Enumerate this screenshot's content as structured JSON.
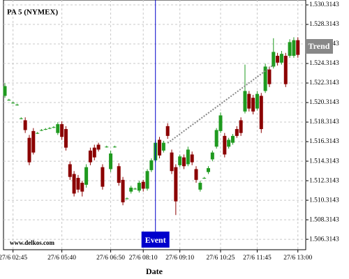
{
  "chart_data": {
    "type": "candlestick",
    "title": "PA 5 (NYMEX)",
    "watermark": "www.delkos.com",
    "x_label": "Date",
    "categories": [
      null,
      null,
      "27/6 02:45",
      null,
      null,
      null,
      null,
      null,
      null,
      null,
      null,
      null,
      null,
      null,
      "27/6 05:40",
      null,
      null,
      null,
      null,
      null,
      null,
      null,
      null,
      null,
      null,
      null,
      "27/6 06:50",
      null,
      null,
      null,
      null,
      null,
      null,
      null,
      "27/6 08:10",
      null,
      null,
      null,
      null,
      null,
      null,
      null,
      null,
      "27/6 09:10",
      null,
      null,
      null,
      null,
      null,
      null,
      null,
      null,
      null,
      "27/6 10:25",
      null,
      null,
      null,
      null,
      null,
      null,
      null,
      null,
      "27/6 11:45",
      null,
      null,
      null,
      null,
      null,
      null,
      null,
      null,
      null,
      "27/6 13:00"
    ],
    "open": [
      1521.0,
      1520.6,
      1520.3,
      1520.1,
      1518.7,
      1518.5,
      1516.7,
      1517.4,
      1517.2,
      1517.5,
      1517.6,
      1517.7,
      1517.8,
      1517.2,
      1518.1,
      1517.6,
      1514.0,
      1513.0,
      1512.6,
      1512.1,
      1511.9,
      1515.4,
      1515.7,
      1516.0,
      1513.7,
      1515.8,
      1513.5,
      1515.8,
      1513.8,
      1512.4,
      1510.5,
      1511.2,
      1511.5,
      1511.3,
      1512.2,
      1511.5,
      1513.4,
      1514.4,
      1516.5,
      1515.4,
      1517.9,
      1515.2,
      1513.7,
      1513.9,
      1514.7,
      1514.0,
      1515.0,
      1513.5,
      1511.4,
      1512.6,
      1513.2,
      1514.5,
      1515.8,
      1517.4,
      1516.9,
      1515.8,
      1516.2,
      1517.6,
      1518.5,
      1519.4,
      1521.2,
      1520.8,
      1519.7,
      1521.0,
      1521.5,
      1523.7,
      1524.0,
      1525.1,
      1524.4,
      1525.1,
      1525.1,
      1525.1,
      1526.7
    ],
    "high": [
      1522.3,
      1520.7,
      1520.4,
      1520.2,
      1518.8,
      1518.8,
      1517.0,
      1517.7,
      1517.3,
      1517.6,
      1517.7,
      1517.8,
      1517.9,
      1518.3,
      1518.4,
      1517.9,
      1514.3,
      1513.3,
      1512.9,
      1512.3,
      1514.0,
      1515.7,
      1516.0,
      1516.2,
      1514.0,
      1515.9,
      1515.4,
      1515.9,
      1514.1,
      1512.7,
      1510.6,
      1511.8,
      1511.6,
      1512.3,
      1512.4,
      1513.5,
      1514.6,
      1516.5,
      1516.8,
      1516.4,
      1518.2,
      1515.5,
      1514.0,
      1515.0,
      1515.0,
      1515.8,
      1515.3,
      1513.8,
      1512.3,
      1512.7,
      1513.8,
      1515.4,
      1517.7,
      1519.3,
      1517.2,
      1516.7,
      1517.1,
      1517.9,
      1518.8,
      1524.2,
      1521.5,
      1521.1,
      1521.5,
      1521.3,
      1524.3,
      1524.0,
      1526.9,
      1525.4,
      1525.6,
      1525.4,
      1526.8,
      1527.0,
      1527.0
    ],
    "low": [
      1520.8,
      1520.5,
      1520.2,
      1520.0,
      1518.6,
      1517.2,
      1513.9,
      1515.0,
      1517.1,
      1517.4,
      1517.5,
      1517.6,
      1517.7,
      1517.0,
      1516.5,
      1515.4,
      1512.4,
      1510.7,
      1511.1,
      1510.7,
      1511.6,
      1513.9,
      1514.4,
      1515.3,
      1511.4,
      1515.7,
      1513.2,
      1515.7,
      1511.8,
      1509.8,
      1510.4,
      1511.0,
      1511.4,
      1511.1,
      1511.2,
      1511.3,
      1513.2,
      1514.2,
      1514.6,
      1515.2,
      1516.6,
      1513.0,
      1508.8,
      1513.7,
      1513.5,
      1513.8,
      1513.9,
      1512.1,
      1511.2,
      1512.5,
      1513.0,
      1514.3,
      1515.6,
      1517.2,
      1514.7,
      1515.6,
      1516.0,
      1516.7,
      1516.9,
      1519.2,
      1519.4,
      1519.1,
      1519.5,
      1517.2,
      1521.3,
      1521.9,
      1523.8,
      1524.1,
      1524.2,
      1521.9,
      1524.9,
      1524.9,
      1524.9
    ],
    "close": [
      1522.0,
      1520.6,
      1520.3,
      1520.1,
      1518.7,
      1517.5,
      1514.2,
      1515.2,
      1517.2,
      1517.5,
      1517.6,
      1517.7,
      1517.8,
      1518.1,
      1516.8,
      1515.7,
      1512.7,
      1511.0,
      1511.4,
      1511.2,
      1513.7,
      1514.2,
      1514.7,
      1515.5,
      1511.7,
      1515.8,
      1515.1,
      1515.8,
      1512.1,
      1510.1,
      1510.5,
      1511.6,
      1511.5,
      1512.1,
      1511.5,
      1513.3,
      1514.4,
      1516.2,
      1514.9,
      1516.2,
      1516.9,
      1513.3,
      1510.2,
      1514.8,
      1513.8,
      1515.5,
      1514.2,
      1512.4,
      1512.1,
      1512.6,
      1513.6,
      1515.2,
      1517.5,
      1519.0,
      1515.0,
      1516.5,
      1516.9,
      1516.9,
      1517.2,
      1521.5,
      1519.7,
      1519.4,
      1521.2,
      1517.6,
      1524.0,
      1522.2,
      1525.5,
      1524.4,
      1525.3,
      1522.2,
      1526.5,
      1526.7,
      1525.2
    ],
    "up_color": "#1f9a1f",
    "down_color": "#8b0000",
    "ylim": [
      1505.25,
      1530.8143
    ],
    "yticks": [
      {
        "value": 1506.3143,
        "label": "1.506.3143"
      },
      {
        "value": 1508.3143,
        "label": "1.508.3143"
      },
      {
        "value": 1510.3143,
        "label": "1.510.3143"
      },
      {
        "value": 1512.3143,
        "label": "1.512.3143"
      },
      {
        "value": 1514.3143,
        "label": "1.514.3143"
      },
      {
        "value": 1516.3143,
        "label": "1.516.3143"
      },
      {
        "value": 1518.3143,
        "label": "1.518.3143"
      },
      {
        "value": 1520.3143,
        "label": "1.520.3143"
      },
      {
        "value": 1522.3143,
        "label": "1.522.3143"
      },
      {
        "value": 1524.3143,
        "label": "1.524.3143"
      },
      {
        "value": 1526.3143,
        "label": "1.526.3143"
      },
      {
        "value": 1528.3143,
        "label": "1.528.3143"
      },
      {
        "value": 1530.3143,
        "label": "1.530.3143"
      }
    ],
    "grid": true,
    "event": {
      "label": "Event",
      "index": 37,
      "color": "#0000cc"
    },
    "trend": {
      "label": "Trend",
      "x": [
        40,
        66
      ],
      "y": [
        1516.17,
        1524.17
      ],
      "color": "#888888"
    }
  }
}
